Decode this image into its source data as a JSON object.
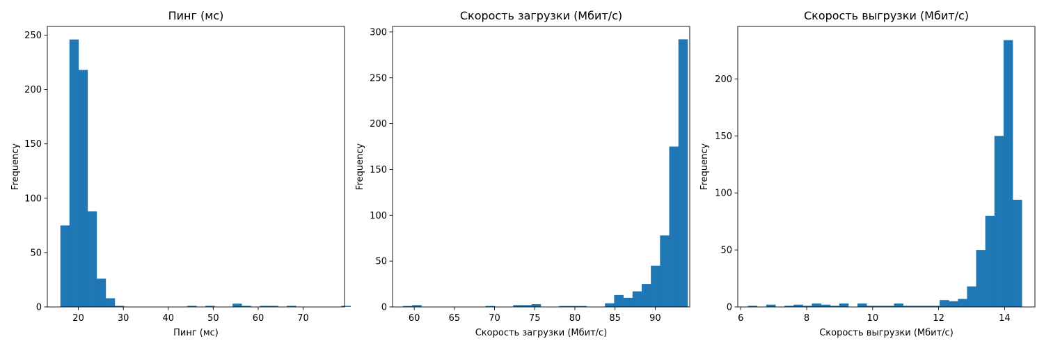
{
  "chart_data": [
    {
      "type": "bar",
      "title": "Пинг (мс)",
      "xlabel": "Пинг (мс)",
      "ylabel": "Frequency",
      "xlim": [
        13.1,
        79.2
      ],
      "ylim": [
        0,
        258
      ],
      "xticks": [
        20,
        30,
        40,
        50,
        60,
        70
      ],
      "yticks": [
        0,
        50,
        100,
        150,
        200,
        250
      ],
      "bin_start": 16.0,
      "bin_width": 2.016,
      "values": [
        75,
        246,
        218,
        88,
        26,
        8,
        1,
        0,
        0,
        0,
        0,
        0,
        0,
        0,
        1,
        0,
        1,
        0,
        0,
        3,
        1,
        0,
        1,
        1,
        0,
        1,
        0,
        0,
        0,
        0,
        0,
        1
      ],
      "color": "#1f77b4",
      "grid": false,
      "legend": "none"
    },
    {
      "type": "bar",
      "title": "Скорость загрузки (Мбит/с)",
      "xlabel": "Скорость загрузки (Мбит/с)",
      "ylabel": "Frequency",
      "xlim": [
        57.3,
        94.3
      ],
      "ylim": [
        0,
        306
      ],
      "xticks": [
        60,
        65,
        70,
        75,
        80,
        85,
        90
      ],
      "yticks": [
        0,
        50,
        100,
        150,
        200,
        250,
        300
      ],
      "bin_start": 58.6,
      "bin_width": 1.143,
      "values": [
        1,
        2,
        0,
        0,
        0,
        0,
        0,
        0,
        0,
        1,
        0,
        0,
        2,
        2,
        3,
        0,
        0,
        1,
        1,
        1,
        0,
        0,
        4,
        13,
        10,
        17,
        25,
        45,
        78,
        175,
        292
      ],
      "color": "#1f77b4",
      "grid": false,
      "legend": "none"
    },
    {
      "type": "bar",
      "title": "Скорость выгрузки (Мбит/с)",
      "xlabel": "Скорость выгрузки (Мбит/с)",
      "ylabel": "Frequency",
      "xlim": [
        5.91,
        14.92
      ],
      "ylim": [
        0,
        246
      ],
      "xticks": [
        6,
        8,
        10,
        12,
        14
      ],
      "yticks": [
        0,
        50,
        100,
        150,
        200
      ],
      "bin_start": 6.22,
      "bin_width": 0.2767,
      "values": [
        1,
        0,
        2,
        0,
        1,
        2,
        1,
        3,
        2,
        1,
        3,
        0,
        3,
        1,
        1,
        1,
        3,
        1,
        1,
        1,
        1,
        6,
        5,
        7,
        18,
        50,
        80,
        150,
        234,
        94
      ],
      "color": "#1f77b4",
      "grid": false,
      "legend": "none"
    }
  ]
}
